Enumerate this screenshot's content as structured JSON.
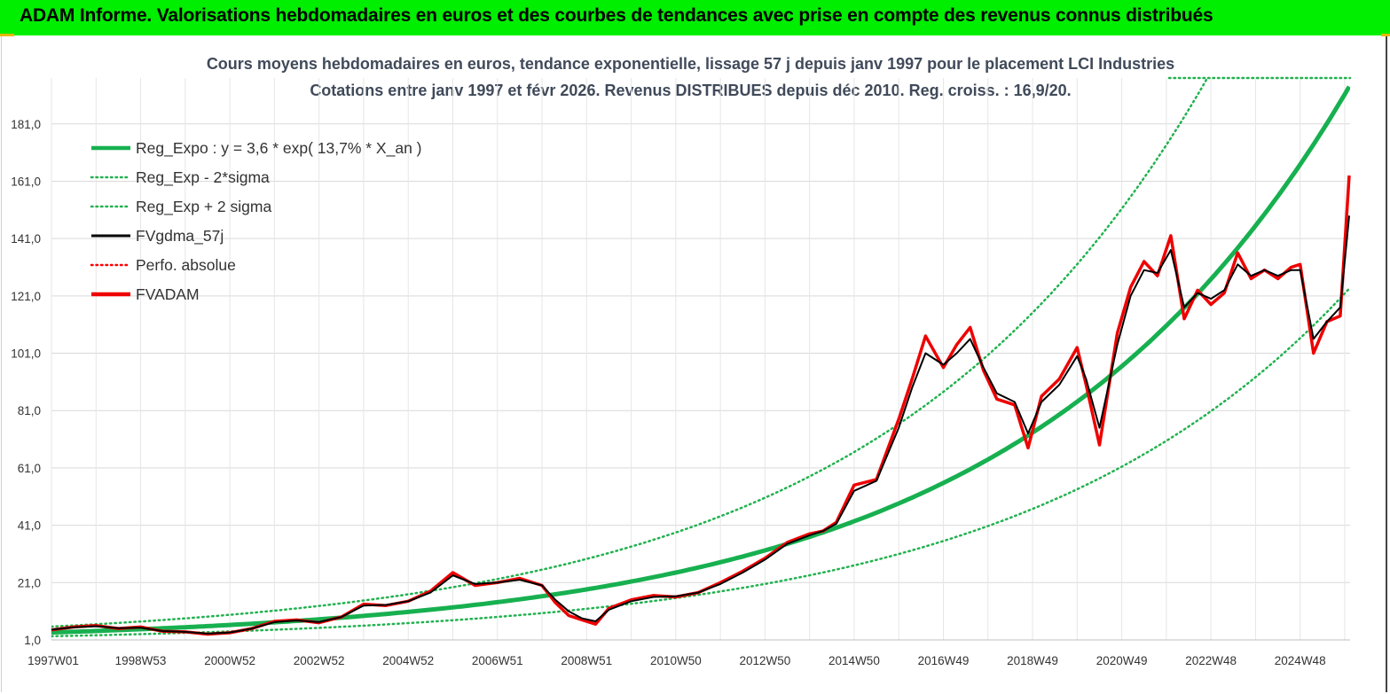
{
  "banner": {
    "title": "ADAM Informe. Valorisations hebdomadaires en euros et des courbes de tendances avec prise en compte des revenus connus distribués"
  },
  "colors": {
    "banner_bg": "#00ee00",
    "reg_expo": "#17b050",
    "sigma_bands": "#21b24f",
    "fvgdma": "#000000",
    "perfo": "#ff0000",
    "fvadam": "#ee0000"
  },
  "chart_data": {
    "type": "line",
    "title": "Cours moyens hebdomadaires en euros, tendance exponentielle, lissage 57 j depuis janv 1997 pour le placement LCI Industries",
    "subtitle": "Cotations entre janv 1997 et févr 2026. Revenus DISTRIBUES depuis déc 2010. Reg. croiss. : 16,9/20.",
    "xlabel": "",
    "ylabel": "",
    "x_range": [
      "1997W01",
      "2026W07"
    ],
    "ylim": [
      1,
      197
    ],
    "y_ticks": [
      "1,0",
      "21,0",
      "41,0",
      "61,0",
      "81,0",
      "101,0",
      "121,0",
      "141,0",
      "161,0",
      "181,0"
    ],
    "x_ticks": [
      "1997W01",
      "1998W53",
      "2000W52",
      "2002W52",
      "2004W52",
      "2006W51",
      "2008W51",
      "2010W50",
      "2012W50",
      "2014W50",
      "2016W49",
      "2018W49",
      "2020W49",
      "2022W48",
      "2024W48"
    ],
    "grid": true,
    "legend_position": "top-left",
    "legend": [
      {
        "label": "Reg_Expo : y = 3,6 * exp( 13,7% *  X_an )",
        "style": "solid-thick",
        "color": "#17b050"
      },
      {
        "label": "Reg_Exp - 2*sigma",
        "style": "dotted",
        "color": "#21b24f"
      },
      {
        "label": "Reg_Exp + 2 sigma",
        "style": "dotted",
        "color": "#21b24f"
      },
      {
        "label": "FVgdma_57j",
        "style": "solid",
        "color": "#000000"
      },
      {
        "label": "Perfo. absolue",
        "style": "dotted",
        "color": "#ff0000"
      },
      {
        "label": "FVADAM",
        "style": "solid-thick",
        "color": "#ee0000"
      }
    ],
    "regression": {
      "a": 3.6,
      "growth_rate": 0.137,
      "sigma_factor": 1.57,
      "x_start_year": 1997.0
    },
    "series": [
      {
        "name": "FVADAM",
        "x": [
          1997.0,
          1997.5,
          1998.0,
          1998.5,
          1999.0,
          1999.5,
          2000.0,
          2000.5,
          2001.0,
          2001.5,
          2002.0,
          2002.5,
          2003.0,
          2003.5,
          2004.0,
          2004.5,
          2005.0,
          2005.5,
          2006.0,
          2006.5,
          2007.0,
          2007.5,
          2008.0,
          2008.3,
          2008.6,
          2008.9,
          2009.2,
          2009.5,
          2010.0,
          2010.5,
          2011.0,
          2011.5,
          2012.0,
          2012.5,
          2013.0,
          2013.5,
          2014.0,
          2014.3,
          2014.6,
          2015.0,
          2015.5,
          2016.0,
          2016.3,
          2016.6,
          2017.0,
          2017.3,
          2017.6,
          2017.9,
          2018.2,
          2018.6,
          2018.9,
          2019.2,
          2019.6,
          2020.0,
          2020.2,
          2020.5,
          2020.9,
          2021.2,
          2021.5,
          2021.8,
          2022.1,
          2022.4,
          2022.7,
          2023.0,
          2023.3,
          2023.6,
          2023.9,
          2024.2,
          2024.5,
          2024.8,
          2025.0,
          2025.3,
          2025.6,
          2025.9,
          2026.1
        ],
        "y": [
          4.5,
          5.5,
          6.0,
          5.0,
          5.5,
          4.0,
          3.8,
          3.0,
          3.5,
          5.0,
          7.5,
          8.0,
          7.0,
          9.0,
          13.5,
          13.0,
          14.5,
          18.0,
          24.5,
          20.0,
          21.0,
          22.5,
          20.0,
          14.0,
          9.5,
          8.0,
          6.5,
          12.0,
          15.0,
          16.5,
          16.0,
          17.5,
          21.0,
          25.0,
          29.5,
          35.0,
          38.0,
          39.0,
          42.0,
          55.0,
          57.0,
          78.0,
          92.0,
          107.0,
          96.0,
          104.0,
          110.0,
          95.0,
          85.0,
          83.0,
          68.0,
          86.0,
          92.0,
          103.0,
          90.0,
          69.0,
          108.0,
          124.0,
          133.0,
          128.0,
          142.0,
          113.0,
          123.0,
          118.0,
          122.0,
          136.0,
          127.0,
          130.0,
          127.0,
          131.0,
          132.0,
          101.0,
          112.0,
          114.0,
          163.0
        ]
      },
      {
        "name": "FVgdma_57j",
        "x": [
          1997.0,
          1997.5,
          1998.0,
          1998.5,
          1999.0,
          1999.5,
          2000.0,
          2000.5,
          2001.0,
          2001.5,
          2002.0,
          2002.5,
          2003.0,
          2003.5,
          2004.0,
          2004.5,
          2005.0,
          2005.5,
          2006.0,
          2006.5,
          2007.0,
          2007.5,
          2008.0,
          2008.3,
          2008.6,
          2008.9,
          2009.2,
          2009.5,
          2010.0,
          2010.5,
          2011.0,
          2011.5,
          2012.0,
          2012.5,
          2013.0,
          2013.5,
          2014.0,
          2014.3,
          2014.6,
          2015.0,
          2015.5,
          2016.0,
          2016.3,
          2016.6,
          2017.0,
          2017.3,
          2017.6,
          2017.9,
          2018.2,
          2018.6,
          2018.9,
          2019.2,
          2019.6,
          2020.0,
          2020.2,
          2020.5,
          2020.9,
          2021.2,
          2021.5,
          2021.8,
          2022.1,
          2022.4,
          2022.7,
          2023.0,
          2023.3,
          2023.6,
          2023.9,
          2024.2,
          2024.5,
          2024.8,
          2025.0,
          2025.3,
          2025.6,
          2025.9,
          2026.1
        ],
        "y": [
          4.6,
          5.4,
          5.8,
          5.1,
          5.3,
          4.1,
          3.8,
          3.2,
          3.6,
          5.0,
          7.2,
          7.8,
          7.2,
          9.0,
          13.0,
          13.2,
          14.5,
          17.5,
          23.5,
          20.5,
          21.0,
          22.0,
          20.0,
          15.0,
          11.0,
          8.5,
          7.5,
          11.5,
          14.5,
          16.0,
          16.2,
          17.5,
          20.5,
          24.5,
          29.0,
          34.5,
          37.5,
          39.0,
          41.5,
          53.0,
          56.5,
          75.0,
          89.0,
          101.0,
          97.0,
          101.0,
          106.0,
          96.0,
          87.0,
          84.0,
          73.0,
          84.0,
          90.0,
          100.0,
          92.0,
          75.0,
          104.0,
          121.0,
          130.0,
          129.0,
          137.0,
          117.0,
          122.0,
          120.0,
          123.0,
          132.0,
          128.0,
          130.0,
          128.0,
          130.0,
          130.0,
          106.0,
          112.0,
          117.0,
          149.0
        ]
      }
    ]
  }
}
